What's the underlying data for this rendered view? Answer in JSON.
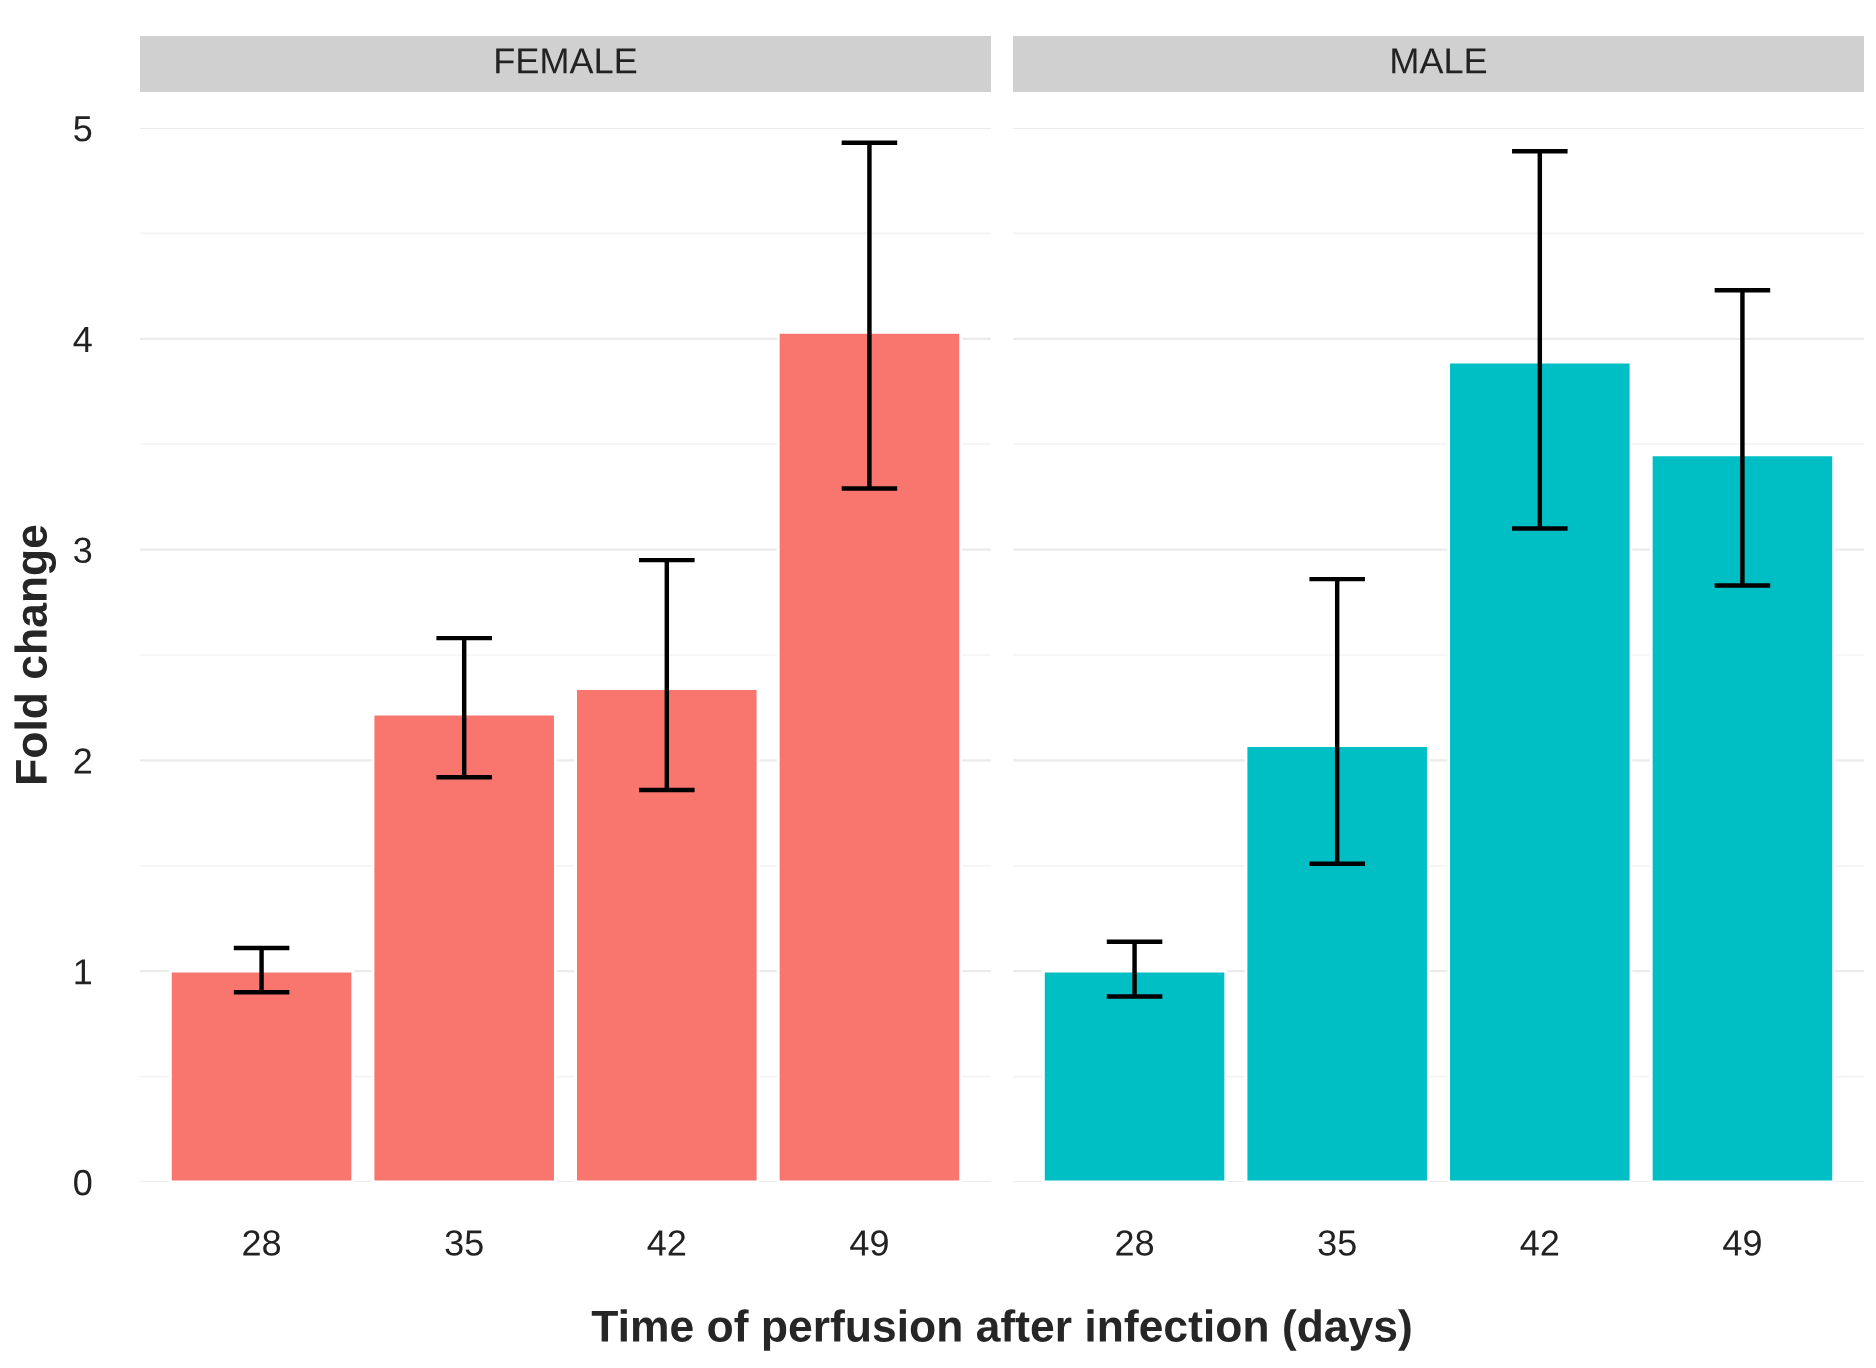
{
  "chart_data": [
    {
      "type": "bar",
      "title": "FEMALE",
      "ylabel": "Fold change",
      "xlabel": "Time of perfusion after infection (days)",
      "categories": [
        "28",
        "35",
        "42",
        "49"
      ],
      "values": [
        1.0,
        2.22,
        2.34,
        4.03
      ],
      "errors": [
        [
          0.9,
          1.11
        ],
        [
          1.92,
          2.58
        ],
        [
          1.86,
          2.95
        ],
        [
          3.29,
          4.93
        ]
      ],
      "color": "#f8766d",
      "ylim": [
        0,
        5
      ],
      "yticks": [
        0,
        1,
        2,
        3,
        4,
        5
      ],
      "grid": "y"
    },
    {
      "type": "bar",
      "title": "MALE",
      "categories": [
        "28",
        "35",
        "42",
        "49"
      ],
      "values": [
        1.0,
        2.07,
        3.89,
        3.45
      ],
      "errors": [
        [
          0.88,
          1.14
        ],
        [
          1.51,
          2.86
        ],
        [
          3.1,
          4.89
        ],
        [
          2.83,
          4.23
        ]
      ],
      "color": "#00bfc4",
      "ylim": [
        0,
        5
      ],
      "yticks": [
        0,
        1,
        2,
        3,
        4,
        5
      ],
      "grid": "y",
      "tick_labels": "x"
    }
  ]
}
